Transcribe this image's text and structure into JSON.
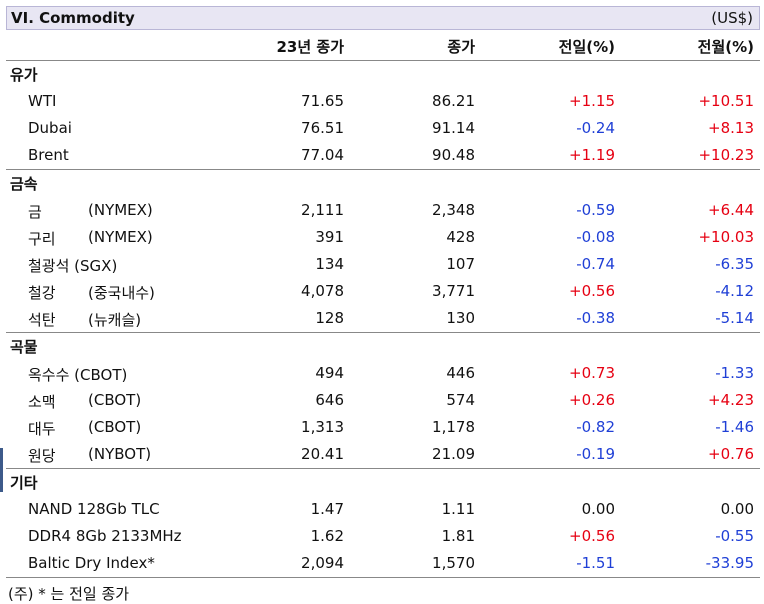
{
  "title": "VI. Commodity",
  "unit": "(US$)",
  "headers": {
    "c1": "23년 종가",
    "c2": "종가",
    "c3": "전일(%)",
    "c4": "전월(%)"
  },
  "sections": [
    {
      "name": "유가",
      "rows": [
        {
          "label": "WTI",
          "sub": "",
          "c1": "71.65",
          "c2": "86.21",
          "c3": "+1.15",
          "c4": "+10.51"
        },
        {
          "label": "Dubai",
          "sub": "",
          "c1": "76.51",
          "c2": "91.14",
          "c3": "-0.24",
          "c4": "+8.13"
        },
        {
          "label": "Brent",
          "sub": "",
          "c1": "77.04",
          "c2": "90.48",
          "c3": "+1.19",
          "c4": "+10.23"
        }
      ]
    },
    {
      "name": "금속",
      "rows": [
        {
          "label": "금",
          "sub": "(NYMEX)",
          "c1": "2,111",
          "c2": "2,348",
          "c3": "-0.59",
          "c4": "+6.44"
        },
        {
          "label": "구리",
          "sub": "(NYMEX)",
          "c1": "391",
          "c2": "428",
          "c3": "-0.08",
          "c4": "+10.03"
        },
        {
          "label": "철광석 (SGX)",
          "sub": "",
          "c1": "134",
          "c2": "107",
          "c3": "-0.74",
          "c4": "-6.35"
        },
        {
          "label": "철강",
          "sub": "(중국내수)",
          "c1": "4,078",
          "c2": "3,771",
          "c3": "+0.56",
          "c4": "-4.12"
        },
        {
          "label": "석탄",
          "sub": "(뉴캐슬)",
          "c1": "128",
          "c2": "130",
          "c3": "-0.38",
          "c4": "-5.14"
        }
      ]
    },
    {
      "name": "곡물",
      "rows": [
        {
          "label": "옥수수 (CBOT)",
          "sub": "",
          "c1": "494",
          "c2": "446",
          "c3": "+0.73",
          "c4": "-1.33"
        },
        {
          "label": "소맥",
          "sub": "(CBOT)",
          "c1": "646",
          "c2": "574",
          "c3": "+0.26",
          "c4": "+4.23"
        },
        {
          "label": "대두",
          "sub": "(CBOT)",
          "c1": "1,313",
          "c2": "1,178",
          "c3": "-0.82",
          "c4": "-1.46"
        },
        {
          "label": "원당",
          "sub": "(NYBOT)",
          "c1": "20.41",
          "c2": "21.09",
          "c3": "-0.19",
          "c4": "+0.76"
        }
      ]
    },
    {
      "name": "기타",
      "rows": [
        {
          "label": "NAND 128Gb TLC",
          "sub": "",
          "c1": "1.47",
          "c2": "1.11",
          "c3": "0.00",
          "c4": "0.00"
        },
        {
          "label": "DDR4 8Gb 2133MHz",
          "sub": "",
          "c1": "1.62",
          "c2": "1.81",
          "c3": "+0.56",
          "c4": "-0.55"
        },
        {
          "label": "Baltic Dry Index*",
          "sub": "",
          "c1": "2,094",
          "c2": "1,570",
          "c3": "-1.51",
          "c4": "-33.95"
        }
      ]
    }
  ],
  "note": "(주) * 는 전일 종가",
  "colors": {
    "positive": "#e60012",
    "negative": "#1f3fd6",
    "title_bg": "#e8e6f3"
  }
}
